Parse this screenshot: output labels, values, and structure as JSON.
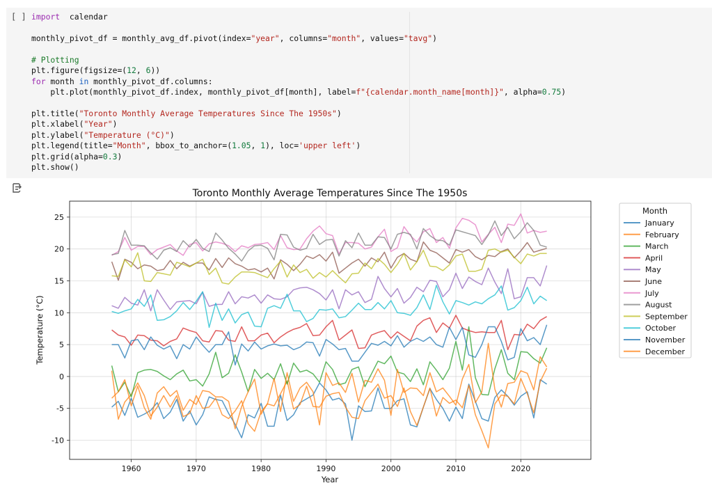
{
  "cell": {
    "prompt": "[ ]",
    "code_lines": [
      [
        [
          "kw",
          "import"
        ],
        [
          "",
          "  calendar"
        ]
      ],
      [],
      [
        [
          "",
          "monthly_pivot_df = monthly_avg_df.pivot(index="
        ],
        [
          "str",
          "\"year\""
        ],
        [
          "",
          ", columns="
        ],
        [
          "str",
          "\"month\""
        ],
        [
          "",
          ", values="
        ],
        [
          "str",
          "\"tavg\""
        ],
        [
          "",
          ")"
        ]
      ],
      [],
      [
        [
          "cmt",
          "# Plotting"
        ]
      ],
      [
        [
          "",
          "plt.figure(figsize=("
        ],
        [
          "num",
          "12"
        ],
        [
          "",
          ", "
        ],
        [
          "num",
          "6"
        ],
        [
          "",
          "))"
        ]
      ],
      [
        [
          "kw",
          "for"
        ],
        [
          "",
          " month "
        ],
        [
          "blue",
          "in"
        ],
        [
          "",
          " monthly_pivot_df.columns:"
        ]
      ],
      [
        [
          "",
          "    plt.plot(monthly_pivot_df.index, monthly_pivot_df[month], label="
        ],
        [
          "str",
          "f\"{calendar.month_name[month]}\""
        ],
        [
          "",
          ", alpha="
        ],
        [
          "num",
          "0.75"
        ],
        [
          "",
          ")"
        ]
      ],
      [],
      [
        [
          "",
          "plt.title("
        ],
        [
          "str",
          "\"Toronto Monthly Average Temperatures Since The 1950s\""
        ],
        [
          "",
          ")"
        ]
      ],
      [
        [
          "",
          "plt.xlabel("
        ],
        [
          "str",
          "\"Year\""
        ],
        [
          "",
          ")"
        ]
      ],
      [
        [
          "",
          "plt.ylabel("
        ],
        [
          "str",
          "\"Temperature (°C)\""
        ],
        [
          "",
          ")"
        ]
      ],
      [
        [
          "",
          "plt.legend(title="
        ],
        [
          "str",
          "\"Month\""
        ],
        [
          "",
          ", bbox_to_anchor=("
        ],
        [
          "num",
          "1.05"
        ],
        [
          "",
          ", "
        ],
        [
          "num",
          "1"
        ],
        [
          "",
          "), loc="
        ],
        [
          "str",
          "'upper left'"
        ],
        [
          "",
          ")"
        ]
      ],
      [
        [
          "",
          "plt.grid(alpha="
        ],
        [
          "num",
          "0.3"
        ],
        [
          "",
          ")"
        ]
      ],
      [
        [
          "",
          "plt.show()"
        ]
      ]
    ]
  },
  "output_icon": "output-toggle-icon",
  "chart_data": {
    "type": "line",
    "title": "Toronto Monthly Average Temperatures Since The 1950s",
    "xlabel": "Year",
    "ylabel": "Temperature (°C)",
    "xlim": [
      1950.5,
      2030.8
    ],
    "ylim": [
      -13.0,
      27.5
    ],
    "xticks": [
      1960,
      1970,
      1980,
      1990,
      2000,
      2010,
      2020
    ],
    "yticks": [
      -10,
      -5,
      0,
      5,
      10,
      15,
      20,
      25
    ],
    "grid": true,
    "legend": {
      "title": "Month",
      "placement": "outside-upper-right"
    },
    "x": [
      1957,
      1958,
      1959,
      1960,
      1961,
      1962,
      1963,
      1964,
      1965,
      1966,
      1967,
      1968,
      1969,
      1970,
      1971,
      1972,
      1973,
      1974,
      1975,
      1976,
      1977,
      1978,
      1979,
      1980,
      1981,
      1982,
      1983,
      1984,
      1985,
      1986,
      1987,
      1988,
      1989,
      1990,
      1991,
      1992,
      1993,
      1994,
      1995,
      1996,
      1997,
      1998,
      1999,
      2000,
      2001,
      2002,
      2003,
      2004,
      2005,
      2006,
      2007,
      2008,
      2009,
      2010,
      2011,
      2012,
      2013,
      2014,
      2015,
      2016,
      2017,
      2018,
      2019,
      2020,
      2021,
      2022,
      2023,
      2024
    ],
    "series": [
      {
        "name": "January",
        "color": "#1f77b4",
        "values": [
          -4.8,
          -3.9,
          -6.1,
          -3.4,
          -6.4,
          -5.9,
          -5.3,
          -4.1,
          -6.6,
          -5.6,
          -3.6,
          -7.0,
          -5.4,
          -7.6,
          -6.0,
          -3.2,
          -3.6,
          -3.8,
          -5.8,
          -7.5,
          -9.6,
          -6.0,
          -6.5,
          -4.2,
          -7.8,
          -7.8,
          -2.9,
          -6.9,
          -6.0,
          -4.1,
          -3.5,
          -2.9,
          -1.0,
          -2.1,
          -3.7,
          -3.4,
          -4.3,
          -10.0,
          -4.6,
          -5.5,
          -5.4,
          -1.8,
          -5.0,
          -5.0,
          -3.8,
          -3.5,
          -7.6,
          -7.9,
          -4.8,
          -1.9,
          -3.6,
          -5.0,
          -7.0,
          -4.8,
          -6.6,
          -1.2,
          -3.9,
          -6.6,
          -7.0,
          -3.3,
          -2.1,
          -3.1,
          -4.5,
          -3.1,
          -2.4,
          -6.5,
          -0.5,
          -1.2
        ]
      },
      {
        "name": "February",
        "color": "#ff7f0e",
        "values": [
          0.9,
          -6.7,
          -4.0,
          -2.8,
          -1.0,
          -3.0,
          -6.2,
          -4.8,
          -3.0,
          -4.8,
          -3.0,
          -6.3,
          -5.8,
          -3.0,
          -5.0,
          -4.8,
          -3.4,
          -6.0,
          -6.6,
          -5.4,
          -3.8,
          -7.4,
          -8.6,
          -5.5,
          -4.3,
          -4.6,
          -2.7,
          -0.7,
          -5.1,
          -4.4,
          -1.5,
          -4.7,
          -4.8,
          -3.1,
          -2.7,
          -2.5,
          -4.8,
          -6.4,
          -6.6,
          -3.8,
          -2.5,
          -1.2,
          -3.4,
          -3.0,
          -4.7,
          -1.8,
          -5.5,
          -7.7,
          -4.8,
          -1.8,
          -6.2,
          -3.3,
          -4.2,
          -3.7,
          -4.9,
          -1.4,
          -6.0,
          -8.5,
          -11.2,
          -4.3,
          -2.9,
          -3.1,
          -4.3,
          -0.3,
          -2.7,
          -5.7,
          -0.8,
          1.3
        ]
      },
      {
        "name": "March",
        "color": "#2ca02c",
        "values": [
          1.7,
          -2.4,
          -0.9,
          -3.2,
          0.6,
          1.0,
          1.1,
          0.8,
          0.1,
          -0.5,
          0.4,
          1.0,
          -0.7,
          -0.5,
          -1.5,
          0.4,
          3.8,
          -0.2,
          0.5,
          3.4,
          0.7,
          -2.4,
          1.1,
          -0.3,
          0.5,
          -0.5,
          2.0,
          -1.2,
          2.1,
          0.7,
          1.0,
          0.4,
          -0.9,
          2.3,
          1.1,
          -1.3,
          -1.0,
          1.1,
          1.5,
          -1.6,
          0.4,
          2.4,
          2.0,
          3.2,
          0.7,
          0.4,
          -0.8,
          1.2,
          -1.3,
          2.3,
          1.0,
          -0.5,
          1.3,
          5.5,
          1.0,
          7.8,
          -0.2,
          -2.8,
          -2.9,
          1.2,
          4.2,
          0.5,
          -0.5,
          3.9,
          3.8,
          2.8,
          2.1,
          4.5
        ]
      },
      {
        "name": "April",
        "color": "#d62728",
        "values": [
          7.3,
          6.5,
          6.2,
          4.9,
          6.5,
          6.4,
          5.7,
          5.6,
          4.8,
          5.5,
          5.9,
          7.6,
          7.2,
          6.9,
          5.6,
          5.4,
          7.2,
          7.1,
          5.7,
          5.5,
          7.8,
          5.6,
          5.6,
          6.5,
          6.8,
          5.3,
          6.2,
          6.9,
          7.4,
          7.7,
          8.3,
          6.4,
          6.5,
          7.8,
          8.8,
          5.7,
          6.5,
          7.3,
          4.4,
          4.5,
          6.5,
          6.9,
          7.2,
          6.0,
          7.0,
          6.3,
          5.6,
          7.9,
          8.8,
          9.2,
          6.9,
          8.4,
          7.6,
          9.6,
          7.6,
          7.2,
          6.9,
          7.0,
          6.9,
          6.9,
          8.8,
          4.2,
          6.6,
          6.5,
          8.2,
          7.5,
          8.8,
          9.4
        ]
      },
      {
        "name": "May",
        "color": "#9467bd",
        "values": [
          11.1,
          10.7,
          12.4,
          11.5,
          11.2,
          13.6,
          10.3,
          13.6,
          12.0,
          10.5,
          11.7,
          11.8,
          11.9,
          11.4,
          13.2,
          11.0,
          11.3,
          11.3,
          13.3,
          11.4,
          12.5,
          12.3,
          12.8,
          11.5,
          12.8,
          12.2,
          12.1,
          12.5,
          13.6,
          13.9,
          14.0,
          13.6,
          13.0,
          12.0,
          13.6,
          10.6,
          13.6,
          12.8,
          13.3,
          11.6,
          12.1,
          15.7,
          13.8,
          12.5,
          13.8,
          11.5,
          12.4,
          14.0,
          13.3,
          15.1,
          14.9,
          12.5,
          13.6,
          16.2,
          13.8,
          15.6,
          14.9,
          14.4,
          17.0,
          14.8,
          13.0,
          16.9,
          12.2,
          12.5,
          15.5,
          15.5,
          14.2,
          17.4
        ]
      },
      {
        "name": "June",
        "color": "#8c564b",
        "values": [
          18.0,
          15.1,
          18.4,
          17.9,
          16.9,
          17.5,
          17.3,
          16.6,
          16.8,
          18.2,
          16.9,
          17.9,
          17.3,
          17.8,
          17.8,
          16.7,
          18.5,
          17.1,
          18.6,
          17.7,
          17.3,
          16.7,
          16.9,
          16.4,
          17.0,
          15.3,
          18.3,
          17.6,
          16.6,
          17.6,
          18.9,
          18.5,
          19.1,
          18.1,
          19.5,
          16.2,
          17.0,
          17.8,
          18.4,
          17.3,
          18.6,
          18.0,
          19.5,
          17.0,
          18.7,
          19.3,
          18.4,
          18.0,
          21.1,
          19.8,
          19.4,
          18.6,
          17.8,
          19.9,
          19.5,
          19.9,
          18.8,
          18.3,
          19.0,
          18.8,
          19.6,
          20.0,
          18.6,
          19.7,
          21.0,
          19.5,
          19.8,
          20.1
        ]
      },
      {
        "name": "July",
        "color": "#e377c2",
        "values": [
          19.0,
          19.6,
          21.8,
          19.8,
          20.4,
          20.4,
          19.1,
          19.9,
          20.3,
          20.7,
          19.7,
          19.0,
          20.7,
          21.0,
          19.7,
          20.8,
          21.1,
          20.9,
          20.5,
          19.6,
          20.5,
          20.2,
          20.7,
          20.8,
          21.0,
          19.9,
          22.1,
          20.2,
          19.9,
          20.0,
          21.6,
          22.8,
          23.6,
          22.4,
          22.1,
          19.2,
          21.0,
          21.0,
          20.9,
          20.0,
          20.3,
          21.9,
          23.1,
          19.6,
          20.2,
          23.5,
          22.1,
          21.1,
          22.7,
          23.2,
          21.0,
          21.8,
          20.1,
          23.3,
          24.8,
          24.5,
          23.8,
          21.1,
          22.3,
          23.4,
          21.0,
          23.9,
          23.7,
          25.5,
          22.5,
          22.9,
          22.6,
          22.8
        ]
      },
      {
        "name": "August",
        "color": "#7f7f7f",
        "values": [
          19.1,
          19.3,
          22.9,
          20.6,
          20.6,
          20.5,
          19.4,
          18.4,
          19.8,
          20.2,
          19.6,
          21.3,
          20.3,
          21.5,
          20.1,
          19.6,
          22.5,
          21.4,
          20.1,
          19.2,
          18.1,
          19.7,
          20.5,
          20.6,
          20.1,
          18.3,
          22.3,
          22.2,
          20.3,
          19.8,
          20.1,
          22.3,
          20.7,
          21.4,
          21.5,
          18.9,
          21.3,
          20.2,
          22.5,
          20.6,
          20.6,
          21.9,
          21.8,
          20.0,
          22.3,
          22.6,
          22.3,
          20.0,
          23.2,
          22.1,
          21.4,
          21.3,
          20.6,
          23.0,
          22.7,
          22.4,
          22.1,
          20.7,
          22.2,
          24.4,
          22.1,
          23.4,
          21.6,
          22.7,
          24.1,
          22.9,
          20.6,
          20.3
        ]
      },
      {
        "name": "September",
        "color": "#bcbd22",
        "values": [
          15.8,
          15.7,
          18.3,
          17.2,
          19.4,
          15.0,
          14.9,
          16.3,
          16.1,
          15.9,
          17.9,
          17.6,
          17.2,
          17.8,
          18.4,
          16.0,
          17.0,
          14.7,
          14.5,
          15.6,
          16.4,
          16.4,
          16.3,
          15.9,
          15.5,
          16.9,
          18.1,
          15.6,
          17.5,
          16.3,
          16.8,
          15.4,
          16.3,
          15.6,
          16.6,
          15.6,
          14.7,
          16.1,
          16.2,
          17.8,
          16.9,
          18.5,
          17.6,
          16.3,
          17.6,
          19.3,
          16.7,
          18.0,
          19.8,
          17.3,
          17.2,
          16.6,
          17.5,
          18.9,
          19.2,
          16.5,
          16.5,
          16.8,
          19.8,
          20.0,
          19.5,
          19.8,
          18.7,
          17.7,
          19.2,
          18.9,
          19.3,
          19.3
        ]
      },
      {
        "name": "October",
        "color": "#17becf",
        "values": [
          10.2,
          9.9,
          10.3,
          10.6,
          12.1,
          11.0,
          12.8,
          8.8,
          8.9,
          9.4,
          10.3,
          11.6,
          10.5,
          11.8,
          13.3,
          7.7,
          11.5,
          8.8,
          10.6,
          8.4,
          9.7,
          10.1,
          7.9,
          7.8,
          10.7,
          11.1,
          10.7,
          12.9,
          10.3,
          10.3,
          8.6,
          9.1,
          10.5,
          10.4,
          10.6,
          9.2,
          9.4,
          10.4,
          11.5,
          10.5,
          10.5,
          11.6,
          10.6,
          11.9,
          10.0,
          9.9,
          9.6,
          10.8,
          12.8,
          10.5,
          14.3,
          11.7,
          9.8,
          11.9,
          11.6,
          11.2,
          11.7,
          11.4,
          12.2,
          12.8,
          14.2,
          10.4,
          10.8,
          11.9,
          14.0,
          11.4,
          12.6,
          11.9
        ]
      },
      {
        "name": "November",
        "color": "#1f77b4",
        "values": [
          5.0,
          5.0,
          2.9,
          5.6,
          5.8,
          4.2,
          6.2,
          4.9,
          4.3,
          4.8,
          2.8,
          5.0,
          4.3,
          6.2,
          4.9,
          3.8,
          5.0,
          5.0,
          7.0,
          1.8,
          5.1,
          4.0,
          5.4,
          4.3,
          4.8,
          5.1,
          4.8,
          4.9,
          4.2,
          4.6,
          5.4,
          5.3,
          3.2,
          5.8,
          5.1,
          4.2,
          4.4,
          2.4,
          2.4,
          3.8,
          5.2,
          4.9,
          5.5,
          4.8,
          6.4,
          4.6,
          5.5,
          6.0,
          5.5,
          6.2,
          5.0,
          4.6,
          7.7,
          5.8,
          7.7,
          3.4,
          3.0,
          5.0,
          7.8,
          7.8,
          5.5,
          2.6,
          3.0,
          7.5,
          5.6,
          6.1,
          5.0,
          8.1
        ]
      },
      {
        "name": "December",
        "color": "#ff7f0e",
        "values": [
          -3.4,
          -2.4,
          -0.5,
          -4.6,
          -1.5,
          -4.9,
          -6.7,
          -2.6,
          -1.6,
          -3.1,
          -2.2,
          -5.3,
          -3.6,
          -4.4,
          -2.2,
          -2.4,
          -3.2,
          -3.2,
          -3.9,
          -8.2,
          -4.7,
          -2.4,
          -0.4,
          -5.9,
          -4.2,
          -0.3,
          -5.5,
          0.6,
          -3.9,
          -1.8,
          -0.9,
          -2.4,
          -7.6,
          0.6,
          -1.4,
          -1.0,
          -2.5,
          0.5,
          -4.0,
          -0.6,
          -0.9,
          1.2,
          -0.6,
          -6.1,
          1.1,
          -2.5,
          -1.8,
          -1.9,
          -3.0,
          0.6,
          -2.4,
          -1.8,
          -3.1,
          -4.5,
          -0.4,
          1.9,
          -4.1,
          -2.4,
          5.2,
          -2.0,
          -4.8,
          -1.1,
          -0.9,
          0.9,
          0.5,
          -2.1,
          3.1,
          1.5
        ]
      }
    ]
  }
}
